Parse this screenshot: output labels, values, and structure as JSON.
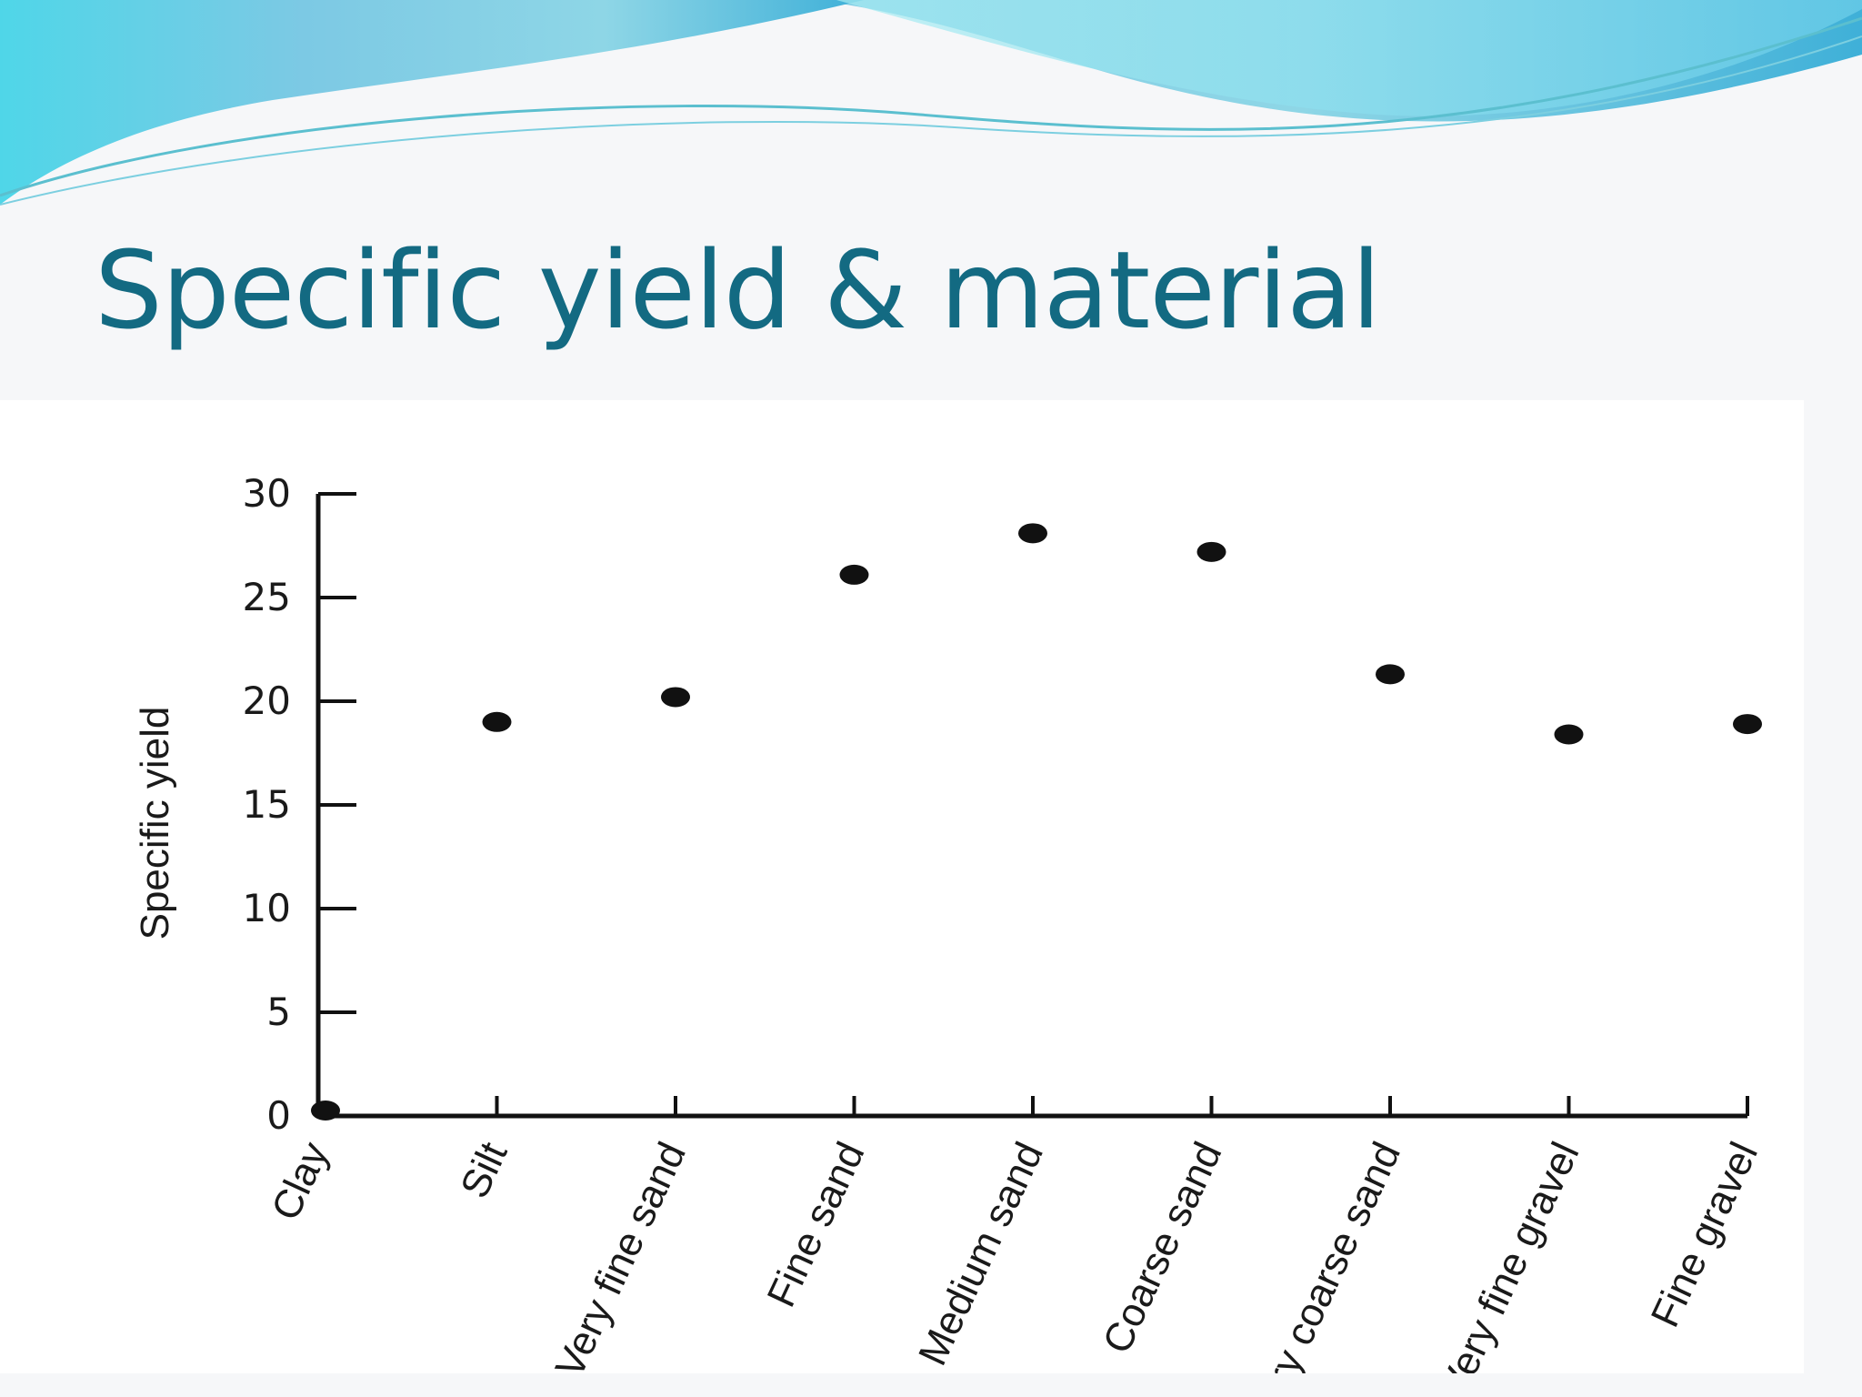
{
  "slide": {
    "title": "Specific yield & material",
    "colors": {
      "title": "#136a82",
      "banner_light": "#8fdbe8",
      "banner_dark": "#3aa6d6",
      "background": "#f6f7f9",
      "chart_bg": "#ffffff",
      "ink": "#111111"
    }
  },
  "chart_data": {
    "type": "scatter",
    "title": "",
    "xlabel": "",
    "ylabel": "Specific yield",
    "ylim": [
      0,
      30
    ],
    "yticks": [
      "0",
      "5",
      "10",
      "15",
      "20",
      "25",
      "30"
    ],
    "categories": [
      "Clay",
      "Silt",
      "Very fine sand",
      "Fine sand",
      "Medium sand",
      "Coarse sand",
      "Very coarse sand",
      "Very fine gravel",
      "Fine gravel"
    ],
    "values": [
      0,
      19,
      20.2,
      26.1,
      28.1,
      27.2,
      21.3,
      18.4,
      18.9
    ],
    "grid": false,
    "legend": "none"
  }
}
